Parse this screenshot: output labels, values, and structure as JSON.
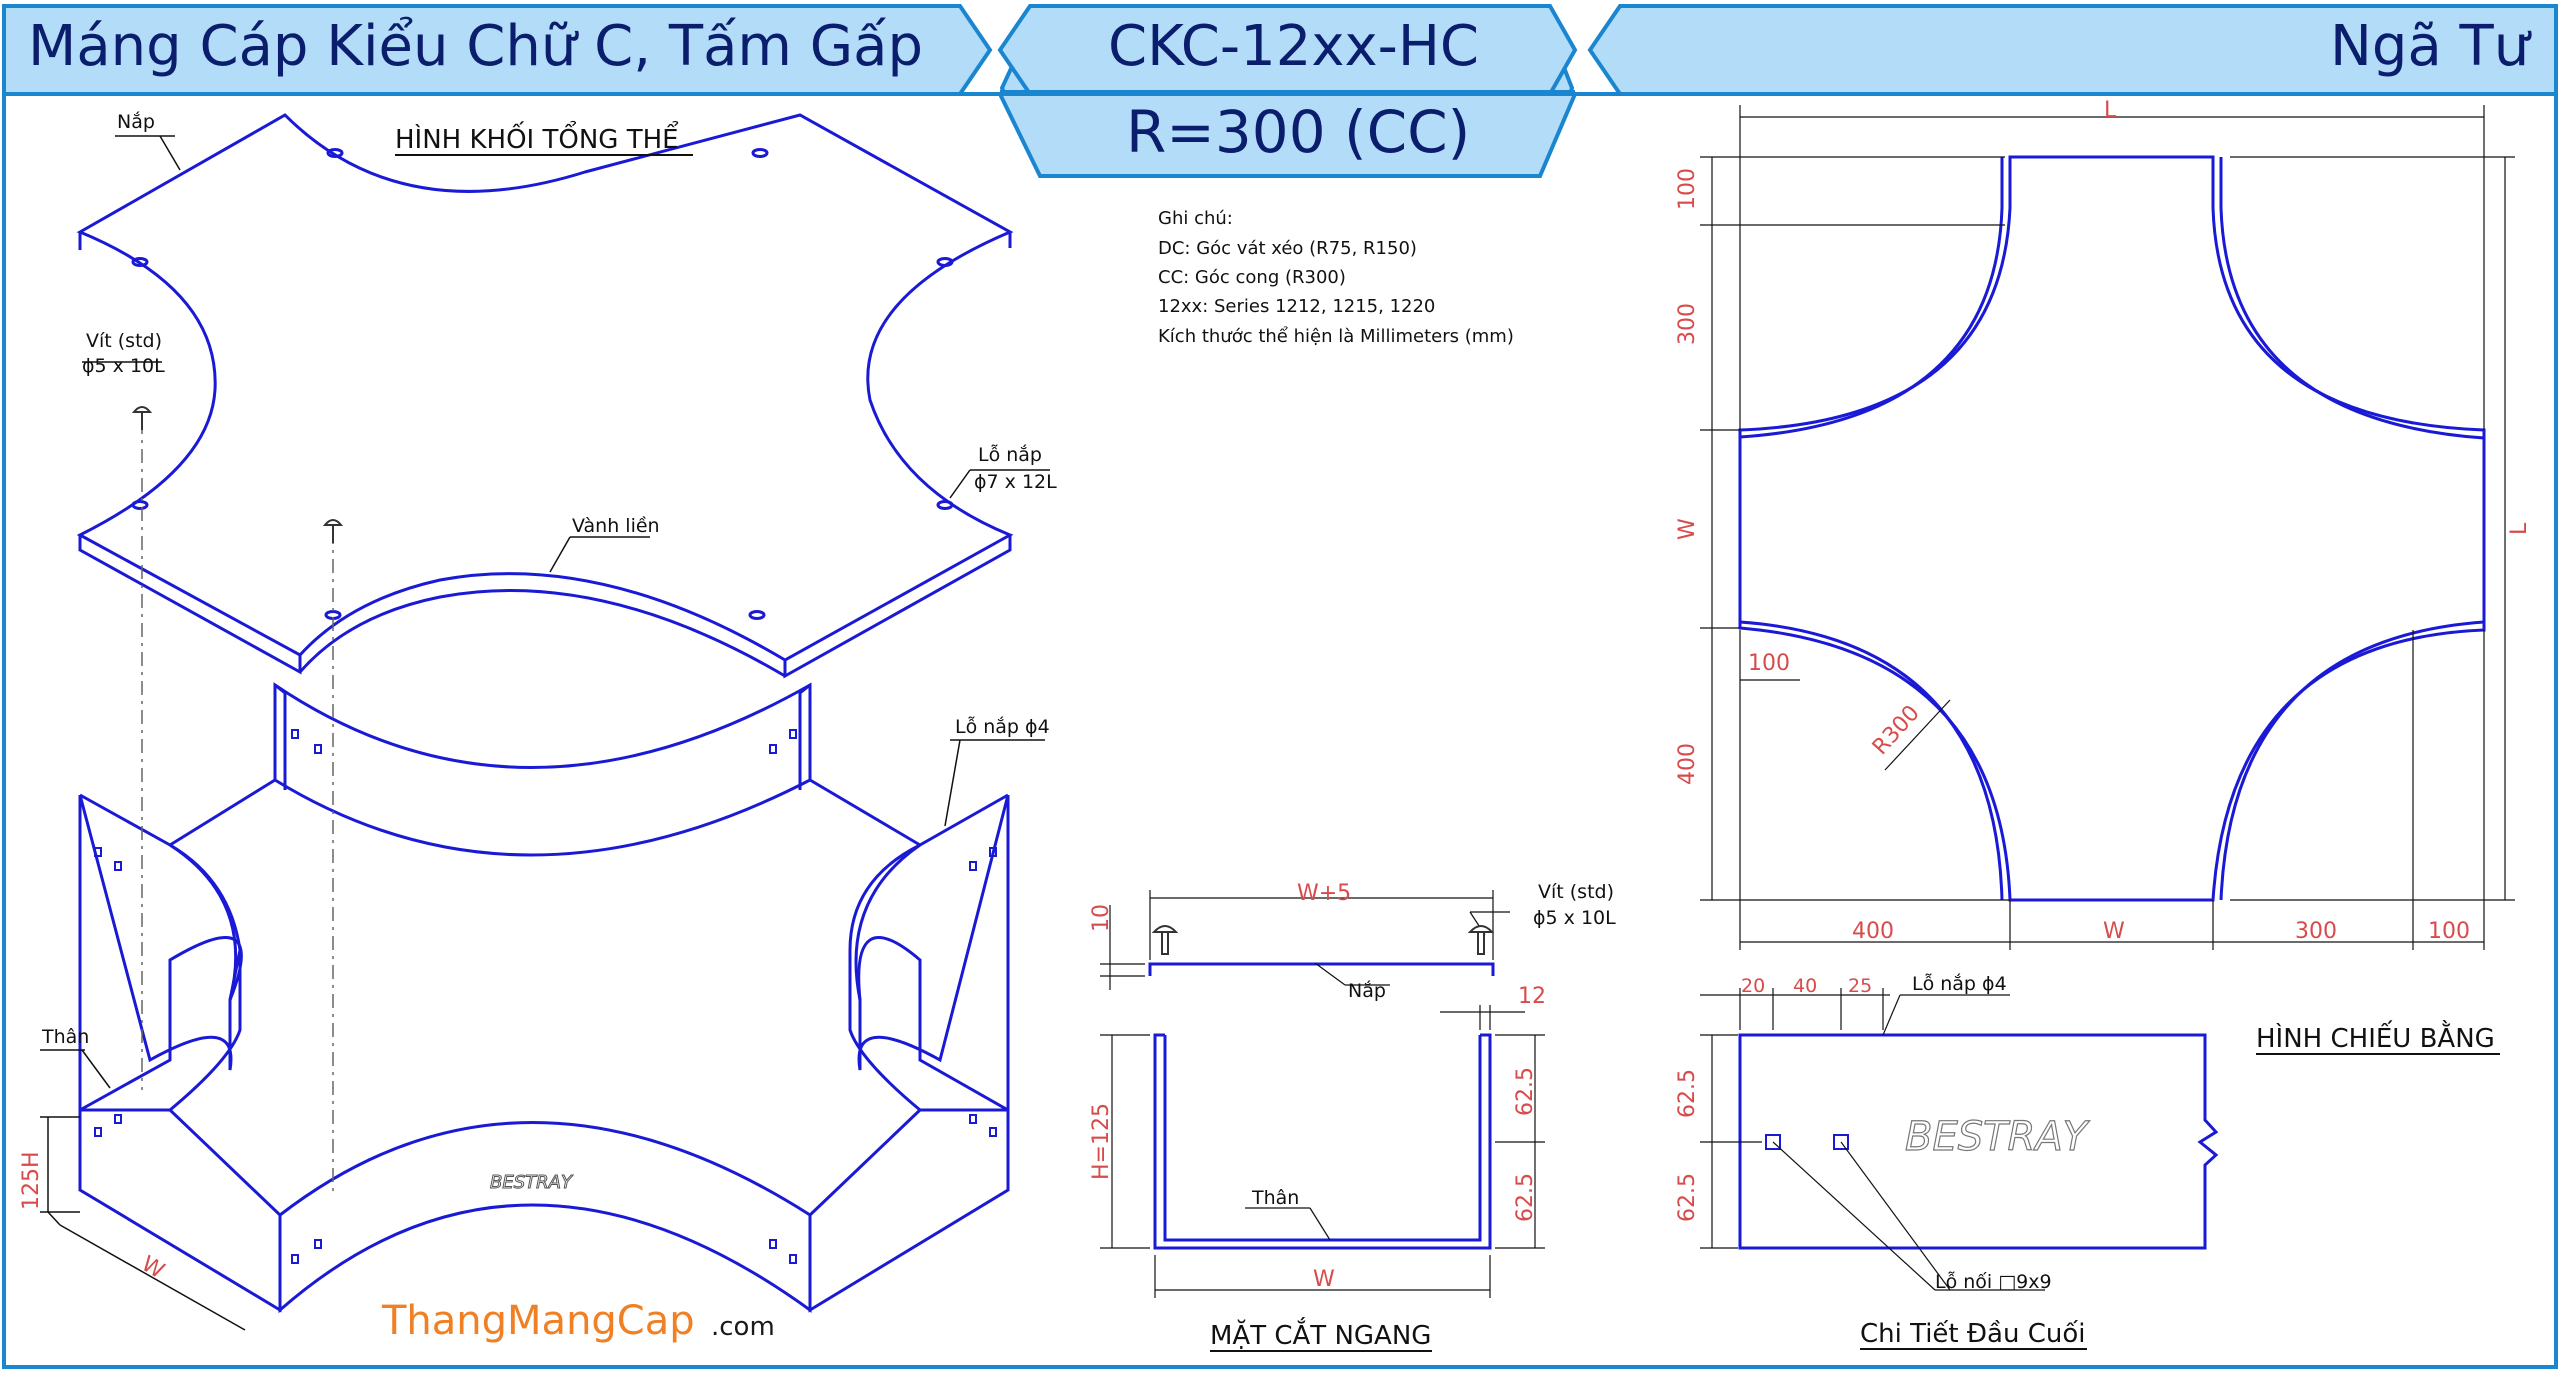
{
  "header": {
    "title_left": "Máng Cáp Kiểu Chữ C, Tấm Gấp",
    "code": "CKC-12xx-HC",
    "radius": "R=300 (CC)",
    "title_right": "Ngã Tư"
  },
  "notes": {
    "heading": "Ghi chú:",
    "lines": [
      "DC: Góc vát xéo (R75, R150)",
      "CC: Góc cong (R300)",
      "12xx: Series 1212, 1215, 1220",
      "Kích thước thể hiện là Millimeters (mm)"
    ]
  },
  "iso": {
    "title": "HÌNH KHỐI TỔNG THỂ",
    "lid_label": "Nắp",
    "screw_label_1": "Vít (std)",
    "screw_label_2": "ϕ5 x 10L",
    "lid_hole_1": "Lỗ nắp",
    "lid_hole_2": "ϕ7 x 12L",
    "rim_label": "Vành liền",
    "lid_hole_body": "Lỗ nắp ϕ4",
    "body_label": "Thân",
    "dim_height": "125H",
    "dim_width": "W",
    "brand": "BESTRAY"
  },
  "plan": {
    "title": "HÌNH CHIẾU BẰNG",
    "dim_L_top": "L",
    "dim_L_side": "L",
    "dim_100_top": "100",
    "dim_300_left": "300",
    "dim_W_left": "W",
    "dim_400_left": "400",
    "dim_100_inner": "100",
    "radius_label": "R300",
    "dim_400_bottom": "400",
    "dim_W_bottom": "W",
    "dim_300_bottom": "300",
    "dim_100_bottom": "100"
  },
  "section": {
    "title": "MẶT CẮT NGANG",
    "dim_top": "W+5",
    "dim_10": "10",
    "screw_1": "Vít (std)",
    "screw_2": "ϕ5 x 10L",
    "lid_label": "Nắp",
    "dim_12": "12",
    "dim_h": "H=125",
    "dim_625_a": "62.5",
    "dim_625_b": "62.5",
    "body_label": "Thân",
    "dim_w": "W"
  },
  "detail": {
    "title": "Chi Tiết Đầu Cuối",
    "dim_20": "20",
    "dim_40": "40",
    "dim_25": "25",
    "hole_label": "Lỗ nắp ϕ4",
    "dim_625_a": "62.5",
    "dim_625_b": "62.5",
    "brand": "BESTRAY",
    "joint_label": "Lỗ nối □9x9"
  },
  "footer": {
    "brand_main": "ThangMangCap",
    "brand_suffix": ".com"
  },
  "colors": {
    "header_fill": "#b3dcf8",
    "header_stroke": "#1a86d0",
    "line_blue": "#1a1ad6",
    "dim_red": "#d84b4b",
    "brand_orange": "#f08024"
  }
}
